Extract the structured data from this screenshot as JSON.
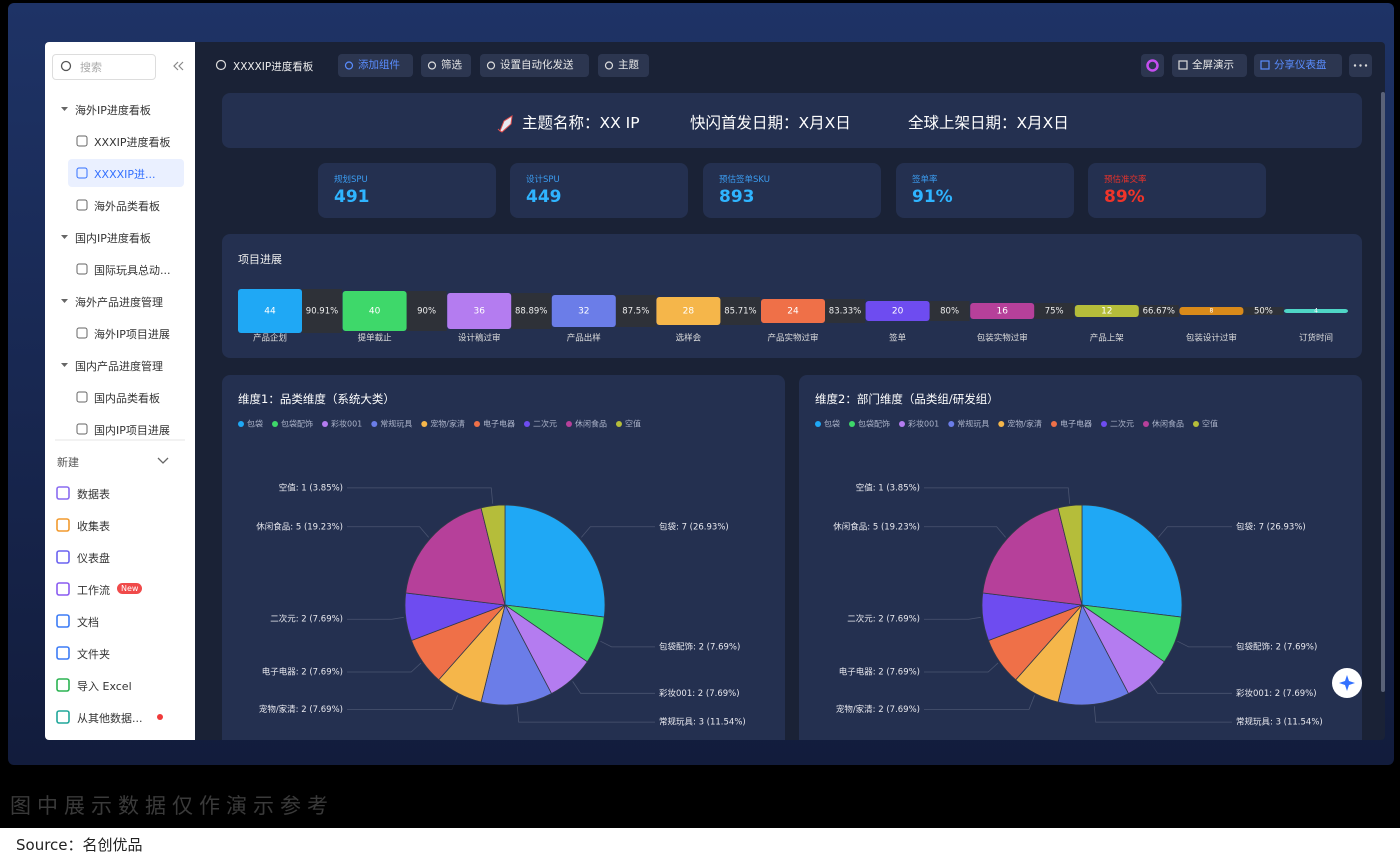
{
  "toolbar": {
    "title": "XXXXIP进度看板",
    "buttons": [
      "添加组件",
      "筛选",
      "设置自动化发送",
      "主题"
    ],
    "right_buttons": [
      "全屏演示",
      "分享仪表盘"
    ]
  },
  "sidebar": {
    "search": "搜索",
    "tree": [
      {
        "label": "海外IP进度看板",
        "children": [
          "XXXIP进度看板",
          "XXXXIP进...",
          "海外品类看板"
        ]
      },
      {
        "label": "国内IP进度看板",
        "children": [
          "国际玩具总动..."
        ]
      },
      {
        "label": "海外产品进度管理",
        "children": [
          "海外IP项目进展"
        ]
      },
      {
        "label": "国内产品进度管理",
        "children": [
          "国内品类看板",
          "国内IP项目进展"
        ]
      }
    ],
    "new": "新建",
    "items": [
      "数据表",
      "收集表",
      "仪表盘",
      "工作流",
      "文档",
      "文件夹",
      "导入 Excel",
      "从其他数据..."
    ],
    "badge": "New"
  },
  "banner": [
    "主题名称：XX IP",
    "快闪首发日期：X月X日",
    "全球上架日期：X月X日"
  ],
  "kpis": [
    {
      "label": "规划SPU",
      "value": "491"
    },
    {
      "label": "设计SPU",
      "value": "449"
    },
    {
      "label": "预估签单SKU",
      "value": "893"
    },
    {
      "label": "签单率",
      "value": "91%"
    },
    {
      "label": "预估准交率",
      "value": "89%"
    }
  ],
  "progress": {
    "title": "项目进展",
    "stages": [
      {
        "label": "产品企划",
        "value": 44,
        "rate": "90.91%"
      },
      {
        "label": "提单截止",
        "value": 40,
        "rate": "90%"
      },
      {
        "label": "设计稿过审",
        "value": 36,
        "rate": "88.89%"
      },
      {
        "label": "产品出样",
        "value": 32,
        "rate": "87.5%"
      },
      {
        "label": "选样会",
        "value": 28,
        "rate": "85.71%"
      },
      {
        "label": "产品实物过审",
        "value": 24,
        "rate": "83.33%"
      },
      {
        "label": "签单",
        "value": 20,
        "rate": "80%"
      },
      {
        "label": "包装实物过审",
        "value": 16,
        "rate": "75%"
      },
      {
        "label": "产品上架",
        "value": 12,
        "rate": "66.67%"
      },
      {
        "label": "包装设计过审",
        "value": 8,
        "rate": "50%"
      },
      {
        "label": "订货时间",
        "value": 4
      }
    ],
    "colors": [
      "#1fa8f5",
      "#3ed86a",
      "#b47cf0",
      "#6b7de8",
      "#f5b64a",
      "#ef7048",
      "#6e4cf0",
      "#b6409a",
      "#b5bd3a",
      "#d98a1a",
      "#4fd6c6"
    ]
  },
  "chart_data": [
    {
      "type": "pie",
      "title": "维度1：品类维度（系统大类）",
      "categories": [
        "包袋",
        "包袋配饰",
        "彩妆001",
        "常规玩具",
        "宠物/家清",
        "电子电器",
        "二次元",
        "休闲食品",
        "空值"
      ],
      "values": [
        7,
        2,
        2,
        3,
        2,
        2,
        2,
        5,
        1
      ],
      "value_labels": [
        "包袋: 7 (26.93%)",
        "包袋配饰: 2 (7.69%)",
        "彩妆001: 2 (7.69%)",
        "常规玩具: 3 (11.54%)",
        "宠物/家清: 2 (7.69%)",
        "电子电器: 2 (7.69%)",
        "二次元: 2 (7.69%)",
        "休闲食品: 5 (19.23%)",
        "空值: 1 (3.85%)"
      ],
      "colors": [
        "#1fa8f5",
        "#3ed86a",
        "#b47cf0",
        "#6b7de8",
        "#f5b64a",
        "#ef7048",
        "#6e4cf0",
        "#b6409a",
        "#b5bd3a"
      ]
    },
    {
      "type": "pie",
      "title": "维度2：部门维度（品类组/研发组）",
      "categories": [
        "包袋",
        "包袋配饰",
        "彩妆001",
        "常规玩具",
        "宠物/家清",
        "电子电器",
        "二次元",
        "休闲食品",
        "空值"
      ],
      "values": [
        7,
        2,
        2,
        3,
        2,
        2,
        2,
        5,
        1
      ],
      "value_labels": [
        "包袋: 7 (26.93%)",
        "包袋配饰: 2 (7.69%)",
        "彩妆001: 2 (7.69%)",
        "常规玩具: 3 (11.54%)",
        "宠物/家清: 2 (7.69%)",
        "电子电器: 2 (7.69%)",
        "二次元: 2 (7.69%)",
        "休闲食品: 5 (19.23%)",
        "空值: 1 (3.85%)"
      ],
      "colors": [
        "#1fa8f5",
        "#3ed86a",
        "#b47cf0",
        "#6b7de8",
        "#f5b64a",
        "#ef7048",
        "#6e4cf0",
        "#b6409a",
        "#b5bd3a"
      ]
    }
  ],
  "footer": {
    "watermark": "图中展示数据仅作演示参考",
    "source": "Source：名创优品"
  }
}
